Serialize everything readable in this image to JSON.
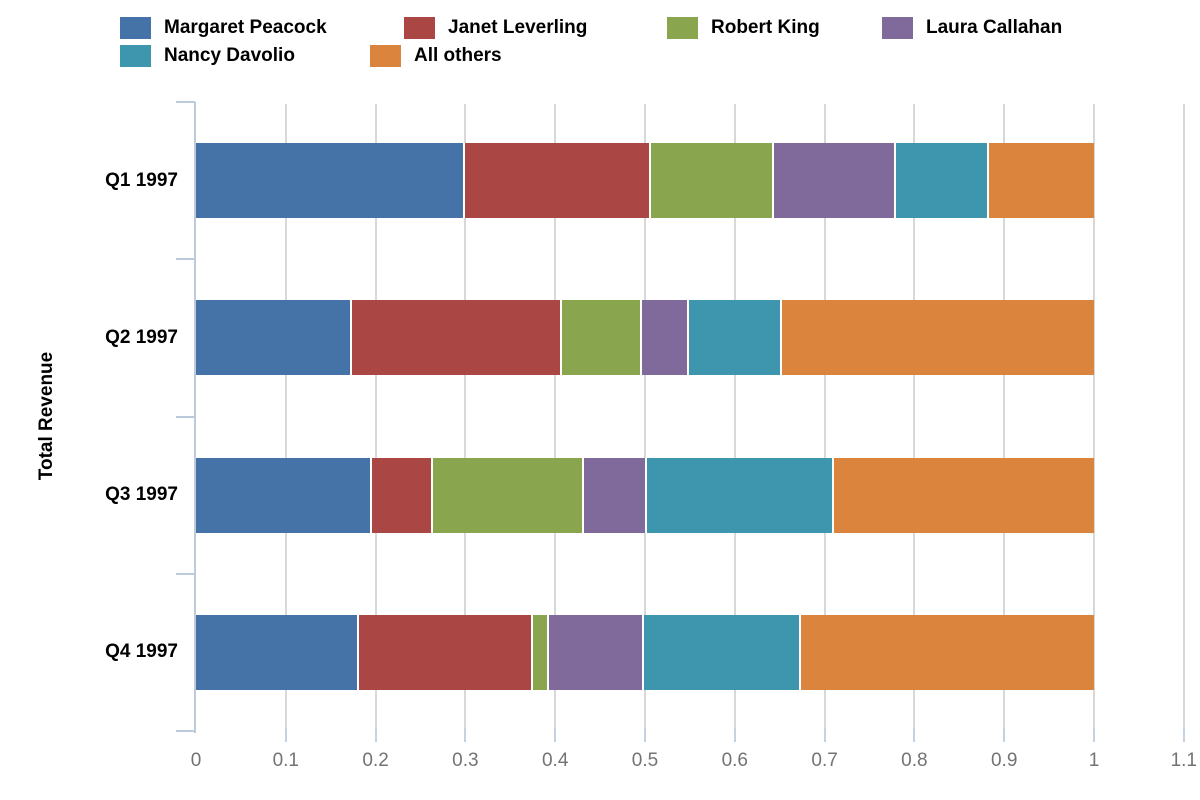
{
  "chart_data": {
    "type": "bar",
    "orientation": "horizontal",
    "stacked": true,
    "normalized": true,
    "title": "",
    "xlabel": "",
    "ylabel": "Total Revenue",
    "xlim": [
      0,
      1.1
    ],
    "x_tick_labels": [
      "0",
      "0.1",
      "0.2",
      "0.3",
      "0.4",
      "0.5",
      "0.6",
      "0.7",
      "0.8",
      "0.9",
      "1",
      "1.1"
    ],
    "grid": true,
    "legend_position": "top",
    "categories": [
      "Q1 1997",
      "Q2 1997",
      "Q3 1997",
      "Q4 1997"
    ],
    "series": [
      {
        "name": "Margaret Peacock",
        "color": "#4572A7",
        "values": [
          0.297,
          0.171,
          0.194,
          0.179
        ]
      },
      {
        "name": "Janet Leverling",
        "color": "#AA4643",
        "values": [
          0.207,
          0.234,
          0.068,
          0.194
        ]
      },
      {
        "name": "Robert King",
        "color": "#89A54E",
        "values": [
          0.137,
          0.089,
          0.168,
          0.018
        ]
      },
      {
        "name": "Laura Callahan",
        "color": "#80699B",
        "values": [
          0.136,
          0.053,
          0.07,
          0.106
        ]
      },
      {
        "name": "Nancy Davolio",
        "color": "#3D96AE",
        "values": [
          0.104,
          0.103,
          0.208,
          0.175
        ]
      },
      {
        "name": "All others",
        "color": "#DB843D",
        "values": [
          0.119,
          0.35,
          0.292,
          0.328
        ]
      }
    ]
  },
  "colors": {
    "axis": "#bccbdc",
    "gridline": "#d8d8d8",
    "tick_label": "#737373",
    "text": "#000000",
    "background": "#ffffff"
  }
}
